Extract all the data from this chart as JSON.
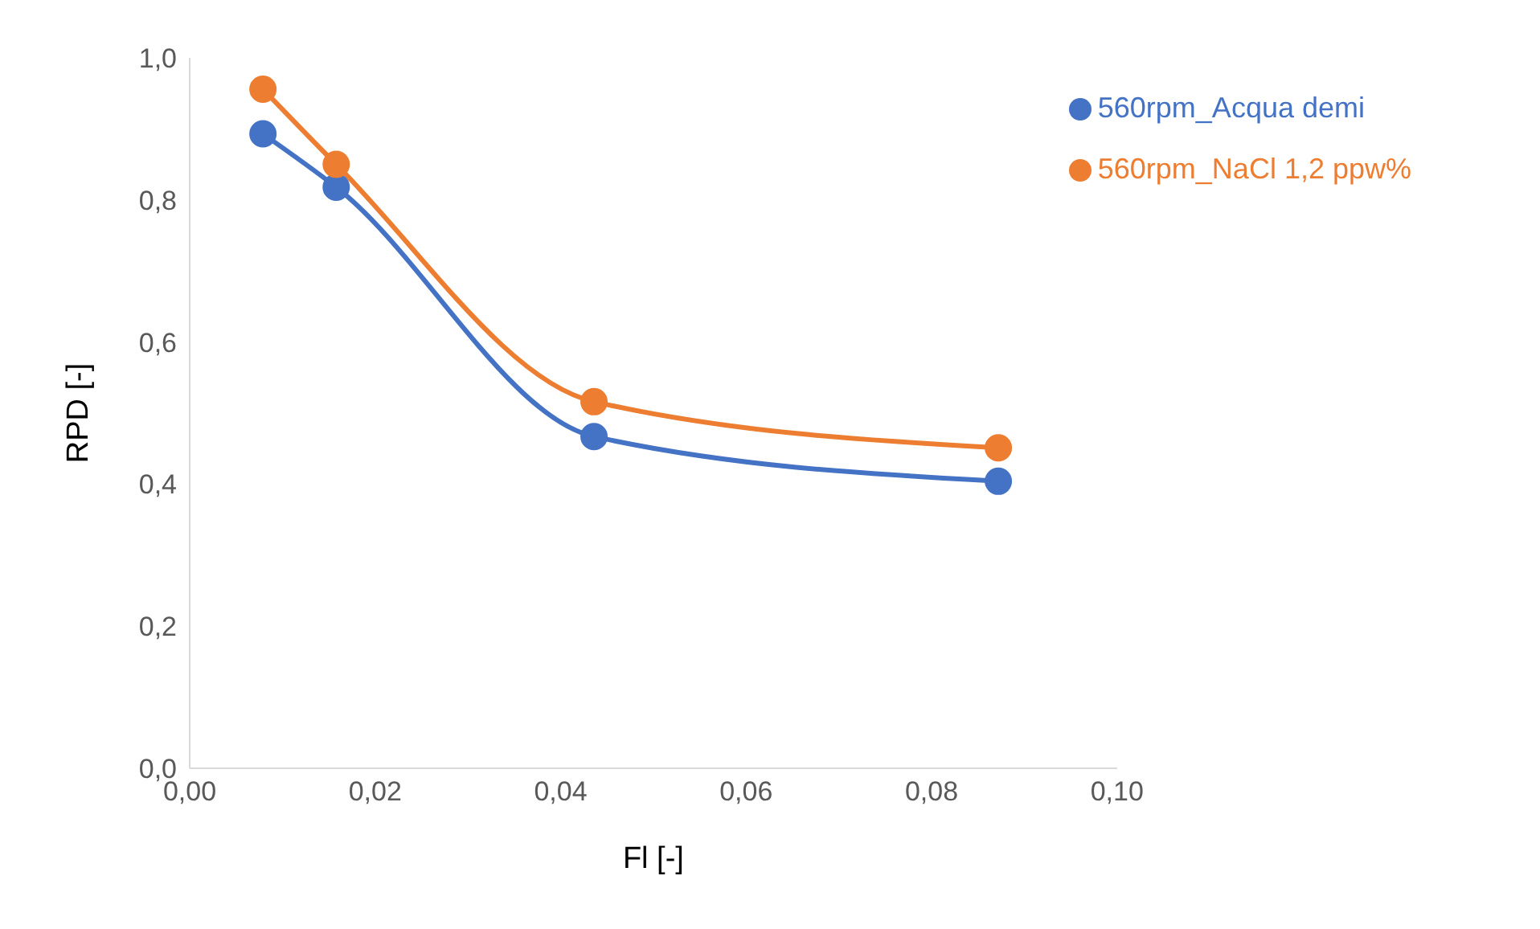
{
  "chart_data": {
    "type": "line",
    "xlabel": "Fl [-]",
    "ylabel": "RPD [-]",
    "x": [
      0.0079,
      0.0158,
      0.0436,
      0.0872
    ],
    "series": [
      {
        "name": "560rpm_Acqua demi",
        "color": "#4472c4",
        "values": [
          0.893,
          0.818,
          0.467,
          0.404
        ]
      },
      {
        "name": "560rpm_NaCl 1,2 ppw%",
        "color": "#ed7d31",
        "values": [
          0.956,
          0.85,
          0.516,
          0.451
        ]
      }
    ],
    "xlim": [
      0,
      0.1
    ],
    "xticks": [
      {
        "value": 0,
        "label": "0,00"
      },
      {
        "value": 0.02,
        "label": "0,02"
      },
      {
        "value": 0.04,
        "label": "0,04"
      },
      {
        "value": 0.06,
        "label": "0,06"
      },
      {
        "value": 0.08,
        "label": "0,08"
      },
      {
        "value": 0.1,
        "label": "0,10"
      }
    ],
    "ylim": [
      0,
      1
    ],
    "yticks": [
      {
        "value": 0,
        "label": "0,0"
      },
      {
        "value": 0.2,
        "label": "0,2"
      },
      {
        "value": 0.4,
        "label": "0,4"
      },
      {
        "value": 0.6,
        "label": "0,6"
      },
      {
        "value": 0.8,
        "label": "0,8"
      },
      {
        "value": 1,
        "label": "1,0"
      }
    ],
    "grid": false,
    "legend": "top right",
    "marker": "circle",
    "line_style": "solid"
  }
}
